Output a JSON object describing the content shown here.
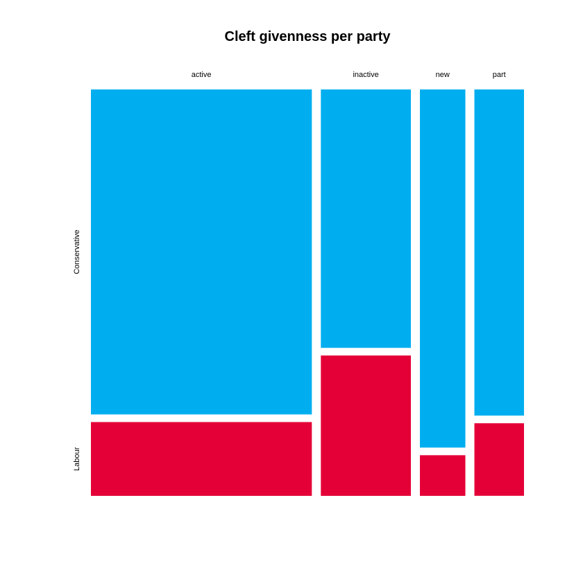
{
  "chart_data": {
    "type": "mosaic",
    "title": "Cleft givenness per party",
    "xlabel": "",
    "ylabel": "",
    "columns": [
      "active",
      "inactive",
      "new",
      "part"
    ],
    "rows": [
      "Conservative",
      "Labour"
    ],
    "column_shares": [
      0.525,
      0.214,
      0.108,
      0.118
    ],
    "row_shares_by_column": {
      "active": {
        "Conservative": 0.815,
        "Labour": 0.185
      },
      "inactive": {
        "Conservative": 0.648,
        "Labour": 0.352
      },
      "new": {
        "Conservative": 0.898,
        "Labour": 0.102
      },
      "part": {
        "Conservative": 0.818,
        "Labour": 0.182
      }
    },
    "colors": {
      "Conservative": "#00aeef",
      "Labour": "#e40037"
    },
    "grid": false,
    "legend": "none"
  }
}
